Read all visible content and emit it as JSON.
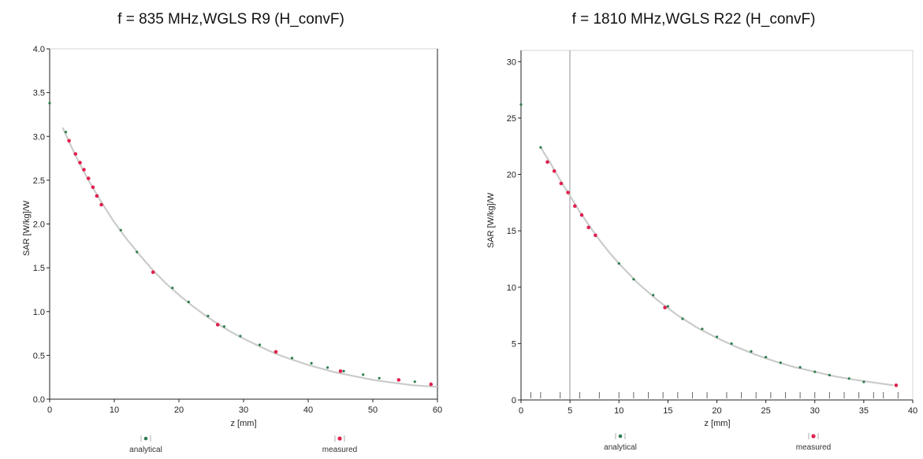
{
  "chart_data": [
    {
      "type": "scatter",
      "title": "f = 835 MHz,WGLS R9 (H_convF)",
      "xlabel": "z [mm]",
      "ylabel": "SAR [W/kg]/W",
      "xlim": [
        0,
        60
      ],
      "ylim": [
        0,
        4.0
      ],
      "xticks": [
        0,
        10,
        20,
        30,
        40,
        50,
        60
      ],
      "yticks": [
        0.0,
        0.5,
        1.0,
        1.5,
        2.0,
        2.5,
        3.0,
        3.5,
        4.0
      ],
      "ytick_format": "fixed1",
      "grid": false,
      "legend_position": "bottom",
      "analytical_curve": {
        "x": [
          2,
          4,
          6,
          8,
          10,
          12,
          14,
          16,
          18,
          20,
          22,
          24,
          26,
          28,
          30,
          32,
          34,
          36,
          38,
          40,
          42,
          44,
          46,
          48,
          50,
          52,
          54,
          56,
          58,
          60
        ],
        "y": [
          3.1,
          2.78,
          2.5,
          2.25,
          2.02,
          1.82,
          1.64,
          1.47,
          1.32,
          1.19,
          1.07,
          0.96,
          0.86,
          0.77,
          0.69,
          0.62,
          0.55,
          0.49,
          0.44,
          0.39,
          0.35,
          0.31,
          0.28,
          0.25,
          0.22,
          0.2,
          0.18,
          0.16,
          0.15,
          0.14
        ]
      },
      "series": [
        {
          "name": "analytical",
          "color": "#2e7d4f",
          "x": [
            0,
            2.5,
            11,
            13.5,
            19,
            21.5,
            24.5,
            27,
            29.5,
            32.5,
            35,
            37.5,
            40.5,
            43,
            45.5,
            48.5,
            51,
            56.5
          ],
          "y": [
            3.38,
            3.05,
            1.93,
            1.68,
            1.27,
            1.11,
            0.95,
            0.83,
            0.72,
            0.62,
            0.54,
            0.47,
            0.41,
            0.36,
            0.32,
            0.28,
            0.24,
            0.2
          ]
        },
        {
          "name": "measured",
          "color": "#e0204e",
          "x": [
            3,
            4,
            4.7,
            5.3,
            6,
            6.7,
            7.3,
            8,
            16,
            26,
            35,
            45,
            54,
            59
          ],
          "y": [
            2.95,
            2.8,
            2.7,
            2.62,
            2.52,
            2.42,
            2.32,
            2.22,
            1.45,
            0.85,
            0.54,
            0.32,
            0.22,
            0.17
          ]
        }
      ],
      "legend_entries": [
        "analytical",
        "measured"
      ]
    },
    {
      "type": "scatter",
      "title": "f = 1810 MHz,WGLS R22 (H_convF)",
      "xlabel": "z [mm]",
      "ylabel": "SAR [W/kg]/W",
      "xlim": [
        0,
        40
      ],
      "ylim": [
        0,
        31
      ],
      "xticks": [
        0,
        5,
        10,
        15,
        20,
        25,
        30,
        35,
        40
      ],
      "yticks": [
        0,
        5,
        10,
        15,
        20,
        25,
        30
      ],
      "ytick_format": "integer",
      "grid": false,
      "legend_position": "bottom",
      "analytical_curve": {
        "x": [
          2,
          3,
          4,
          5,
          6,
          7,
          8,
          9,
          10,
          12,
          14,
          16,
          18,
          20,
          22,
          24,
          26,
          28,
          30,
          32,
          34,
          36,
          38
        ],
        "y": [
          22.4,
          21,
          19.5,
          18.1,
          16.7,
          15.4,
          14.2,
          13.1,
          12.1,
          10.3,
          8.8,
          7.5,
          6.4,
          5.5,
          4.7,
          4.0,
          3.4,
          2.9,
          2.5,
          2.1,
          1.8,
          1.55,
          1.3
        ]
      },
      "series": [
        {
          "name": "analytical",
          "color": "#2e7d4f",
          "x": [
            0,
            2,
            10,
            11.5,
            13.5,
            15,
            16.5,
            18.5,
            20,
            21.5,
            23.5,
            25,
            26.5,
            28.5,
            30,
            31.5,
            33.5,
            35
          ],
          "y": [
            26.2,
            22.4,
            12.1,
            10.7,
            9.3,
            8.3,
            7.2,
            6.3,
            5.6,
            5.0,
            4.3,
            3.8,
            3.3,
            2.9,
            2.5,
            2.2,
            1.9,
            1.6
          ]
        },
        {
          "name": "measured",
          "color": "#e0204e",
          "x": [
            2.7,
            3.4,
            4.1,
            4.8,
            5.5,
            6.2,
            6.9,
            7.6,
            14.7,
            38.3
          ],
          "y": [
            21.1,
            20.3,
            19.2,
            18.4,
            17.2,
            16.4,
            15.3,
            14.6,
            8.2,
            1.3
          ]
        }
      ],
      "legend_entries": [
        "analytical",
        "measured"
      ]
    }
  ]
}
